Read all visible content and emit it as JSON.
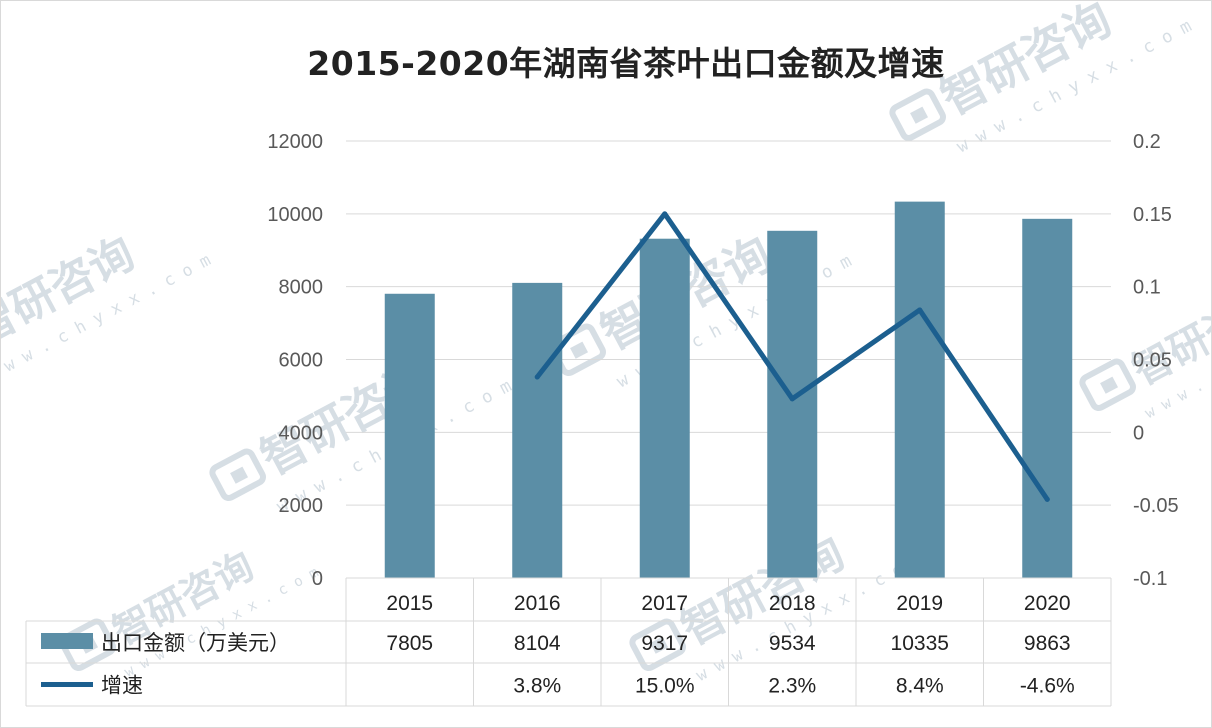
{
  "chart_data": {
    "type": "bar",
    "title": "2015-2020年湖南省茶叶出口金额及增速",
    "categories": [
      "2015",
      "2016",
      "2017",
      "2018",
      "2019",
      "2020"
    ],
    "series": [
      {
        "name": "出口金额（万美元）",
        "type": "bar",
        "axis": "left",
        "color": "#5b8ea6",
        "values": [
          7805,
          8104,
          9317,
          9534,
          10335,
          9863
        ]
      },
      {
        "name": "增速",
        "type": "line",
        "axis": "right",
        "color": "#1c5f8f",
        "values": [
          null,
          0.038,
          0.15,
          0.023,
          0.084,
          -0.046
        ]
      }
    ],
    "y_left": {
      "ylim": [
        0,
        12000
      ],
      "ticks": [
        "0",
        "2000",
        "4000",
        "6000",
        "8000",
        "10000",
        "12000"
      ]
    },
    "y_right": {
      "ylim": [
        -0.1,
        0.2
      ],
      "ticks": [
        "-0.1",
        "-0.05",
        "0",
        "0.05",
        "0.1",
        "0.15",
        "0.2"
      ]
    },
    "grid": true,
    "legend": "data-table-left",
    "data_table": {
      "rows": [
        {
          "label": "出口金额（万美元）",
          "cells": [
            "7805",
            "8104",
            "9317",
            "9534",
            "10335",
            "9863"
          ]
        },
        {
          "label": "增速",
          "cells": [
            "",
            "3.8%",
            "15.0%",
            "2.3%",
            "8.4%",
            "-4.6%"
          ]
        }
      ]
    }
  },
  "watermark": {
    "brand": "智研咨询",
    "url": "w w w . c h y x x . c o m",
    "color": "#c9d3dc"
  }
}
